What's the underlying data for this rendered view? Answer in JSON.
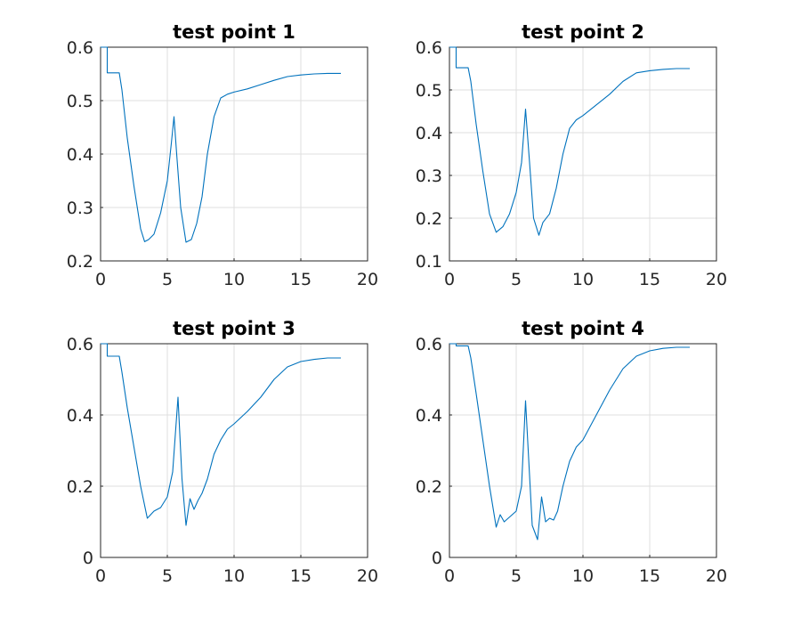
{
  "figure": {
    "background": "#ffffff",
    "line_color": "#0072bd"
  },
  "chart_data": [
    {
      "type": "line",
      "title": "test point 1",
      "xlim": [
        0,
        20
      ],
      "ylim": [
        0.2,
        0.6
      ],
      "xticks": [
        0,
        5,
        10,
        15,
        20
      ],
      "yticks": [
        0.2,
        0.3,
        0.4,
        0.5,
        0.6
      ],
      "xtick_labels": [
        "0",
        "5",
        "10",
        "15",
        "20"
      ],
      "ytick_labels": [
        "0.2",
        "0.3",
        "0.4",
        "0.5",
        "0.6"
      ],
      "grid": true,
      "x": [
        0,
        0.5,
        0.5,
        1.4,
        1.6,
        2.0,
        2.5,
        3.0,
        3.3,
        3.6,
        4.0,
        4.5,
        5.0,
        5.3,
        5.5,
        5.7,
        6.0,
        6.4,
        6.8,
        7.2,
        7.6,
        8.0,
        8.5,
        9.0,
        9.5,
        10.0,
        11.0,
        12.0,
        13.0,
        14.0,
        15.0,
        16.0,
        17.0,
        18.0
      ],
      "y": [
        0.6,
        0.6,
        0.552,
        0.552,
        0.52,
        0.43,
        0.34,
        0.26,
        0.236,
        0.24,
        0.25,
        0.29,
        0.35,
        0.42,
        0.47,
        0.4,
        0.3,
        0.235,
        0.24,
        0.27,
        0.32,
        0.4,
        0.47,
        0.505,
        0.512,
        0.516,
        0.522,
        0.53,
        0.538,
        0.545,
        0.548,
        0.55,
        0.551,
        0.551
      ]
    },
    {
      "type": "line",
      "title": "test point 2",
      "xlim": [
        0,
        20
      ],
      "ylim": [
        0.1,
        0.6
      ],
      "xticks": [
        0,
        5,
        10,
        15,
        20
      ],
      "yticks": [
        0.1,
        0.2,
        0.3,
        0.4,
        0.5,
        0.6
      ],
      "xtick_labels": [
        "0",
        "5",
        "10",
        "15",
        "20"
      ],
      "ytick_labels": [
        "0.1",
        "0.2",
        "0.3",
        "0.4",
        "0.5",
        "0.6"
      ],
      "grid": true,
      "x": [
        0,
        0.5,
        0.5,
        1.4,
        1.6,
        2.0,
        2.5,
        3.0,
        3.5,
        4.0,
        4.5,
        5.0,
        5.4,
        5.7,
        6.0,
        6.3,
        6.7,
        7.0,
        7.5,
        8.0,
        8.5,
        9.0,
        9.5,
        10.0,
        11.0,
        12.0,
        13.0,
        14.0,
        15.0,
        16.0,
        17.0,
        18.0
      ],
      "y": [
        0.6,
        0.6,
        0.552,
        0.552,
        0.52,
        0.42,
        0.31,
        0.21,
        0.167,
        0.18,
        0.21,
        0.26,
        0.33,
        0.455,
        0.33,
        0.2,
        0.16,
        0.19,
        0.21,
        0.27,
        0.35,
        0.41,
        0.43,
        0.44,
        0.465,
        0.49,
        0.52,
        0.54,
        0.545,
        0.548,
        0.55,
        0.55
      ]
    },
    {
      "type": "line",
      "title": "test point 3",
      "xlim": [
        0,
        20
      ],
      "ylim": [
        0,
        0.6
      ],
      "xticks": [
        0,
        5,
        10,
        15,
        20
      ],
      "yticks": [
        0,
        0.2,
        0.4,
        0.6
      ],
      "xtick_labels": [
        "0",
        "5",
        "10",
        "15",
        "20"
      ],
      "ytick_labels": [
        "0",
        "0.2",
        "0.4",
        "0.6"
      ],
      "grid": true,
      "x": [
        0,
        0.5,
        0.5,
        1.4,
        1.6,
        2.0,
        2.5,
        3.0,
        3.5,
        4.0,
        4.5,
        5.0,
        5.4,
        5.8,
        6.1,
        6.4,
        6.7,
        7.0,
        7.3,
        7.6,
        8.0,
        8.5,
        9.0,
        9.5,
        10.0,
        11.0,
        12.0,
        13.0,
        14.0,
        15.0,
        16.0,
        17.0,
        18.0
      ],
      "y": [
        0.6,
        0.6,
        0.565,
        0.565,
        0.52,
        0.42,
        0.31,
        0.2,
        0.11,
        0.13,
        0.14,
        0.17,
        0.24,
        0.45,
        0.22,
        0.09,
        0.165,
        0.135,
        0.16,
        0.18,
        0.22,
        0.29,
        0.33,
        0.36,
        0.375,
        0.41,
        0.45,
        0.5,
        0.535,
        0.55,
        0.556,
        0.56,
        0.56
      ]
    },
    {
      "type": "line",
      "title": "test point 4",
      "xlim": [
        0,
        20
      ],
      "ylim": [
        0,
        0.6
      ],
      "xticks": [
        0,
        5,
        10,
        15,
        20
      ],
      "yticks": [
        0,
        0.2,
        0.4,
        0.6
      ],
      "xtick_labels": [
        "0",
        "5",
        "10",
        "15",
        "20"
      ],
      "ytick_labels": [
        "0",
        "0.2",
        "0.4",
        "0.6"
      ],
      "grid": true,
      "x": [
        0,
        0.5,
        0.5,
        1.4,
        1.6,
        2.0,
        2.5,
        3.0,
        3.5,
        3.8,
        4.1,
        4.4,
        4.7,
        5.0,
        5.4,
        5.7,
        5.9,
        6.2,
        6.6,
        6.9,
        7.2,
        7.5,
        7.8,
        8.1,
        8.5,
        9.0,
        9.5,
        10.0,
        11.0,
        12.0,
        13.0,
        14.0,
        15.0,
        16.0,
        17.0,
        18.0
      ],
      "y": [
        0.6,
        0.6,
        0.594,
        0.594,
        0.56,
        0.46,
        0.33,
        0.2,
        0.085,
        0.12,
        0.1,
        0.11,
        0.12,
        0.13,
        0.2,
        0.44,
        0.3,
        0.09,
        0.05,
        0.17,
        0.1,
        0.11,
        0.105,
        0.13,
        0.2,
        0.27,
        0.31,
        0.33,
        0.4,
        0.47,
        0.53,
        0.565,
        0.58,
        0.587,
        0.59,
        0.59
      ]
    }
  ]
}
